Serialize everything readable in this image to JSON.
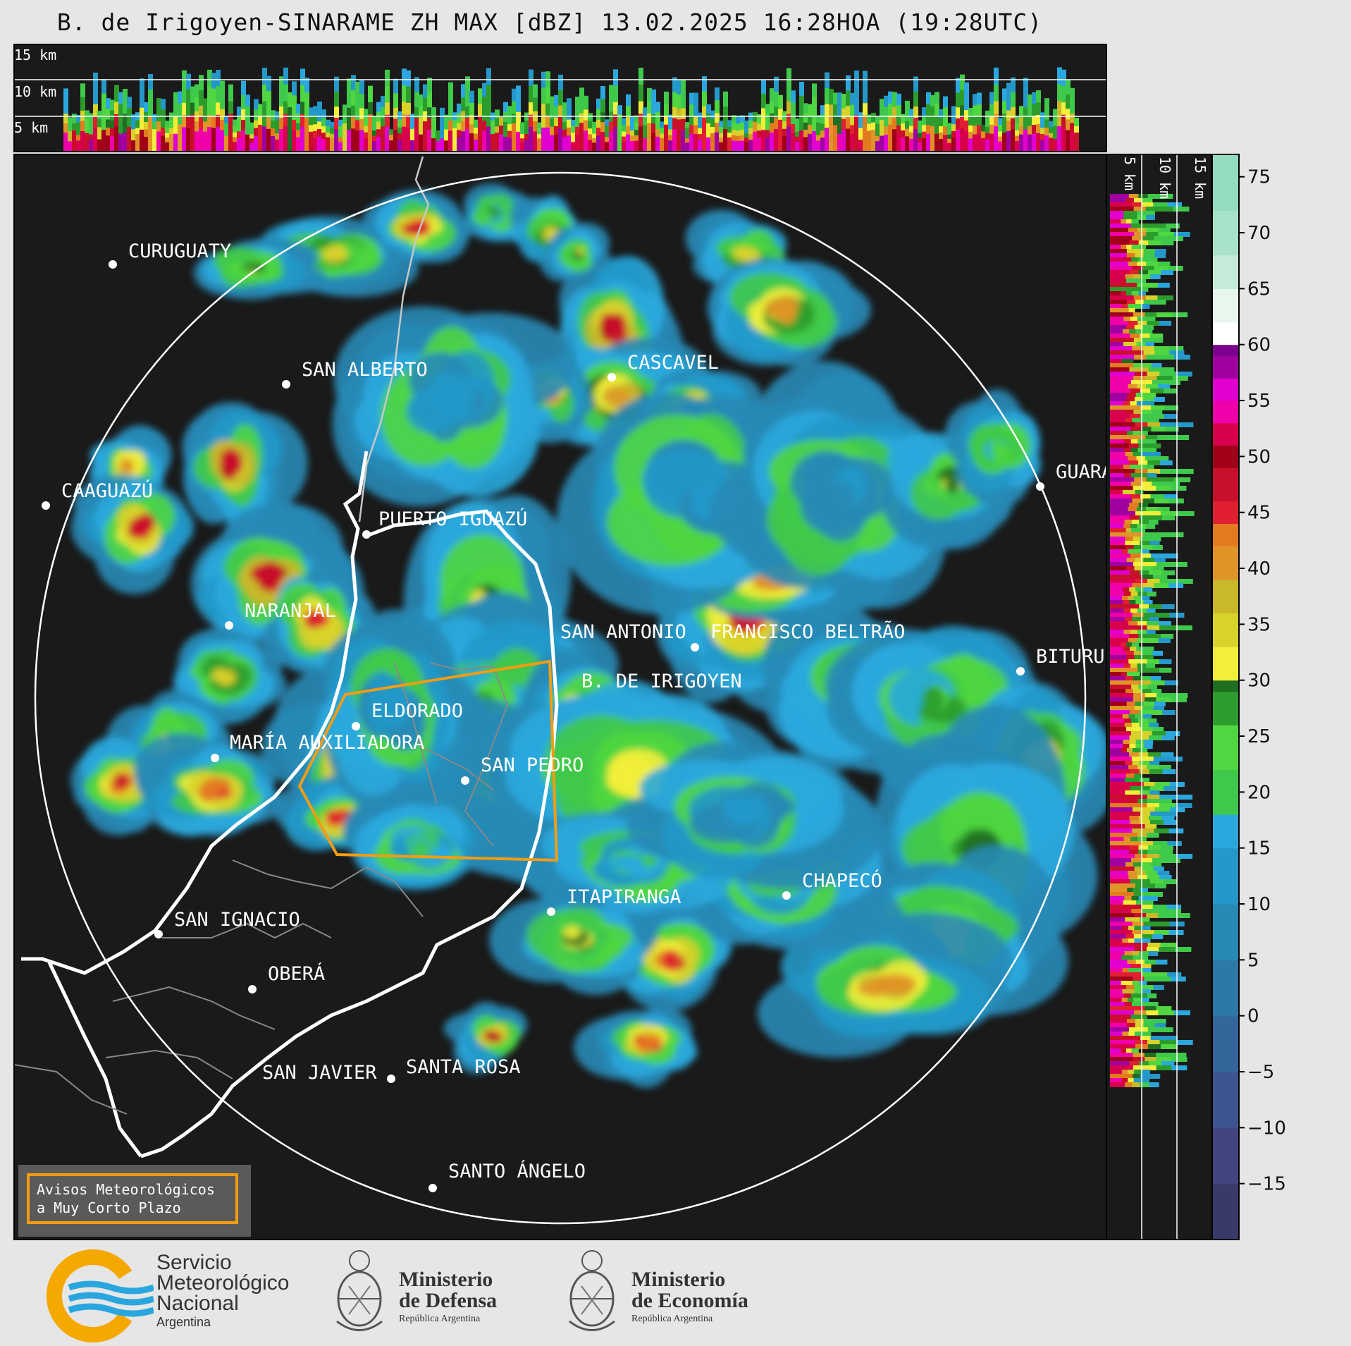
{
  "title": "B. de Irigoyen-SINARAME ZH MAX [dBZ] 13.02.2025 16:28HOA (19:28UTC)",
  "top_profile": {
    "height_labels": [
      "15 km",
      "10 km",
      "5 km"
    ]
  },
  "side_profile": {
    "height_labels": [
      "5 km",
      "10 km",
      "15 km"
    ]
  },
  "colorbar": {
    "ticks": [
      "75",
      "70",
      "65",
      "60",
      "55",
      "50",
      "45",
      "40",
      "35",
      "30",
      "25",
      "20",
      "15",
      "10",
      "5",
      "0",
      "−5",
      "−10",
      "−15"
    ],
    "tick_values": [
      75,
      70,
      65,
      60,
      55,
      50,
      45,
      40,
      35,
      30,
      25,
      20,
      15,
      10,
      5,
      0,
      -5,
      -10,
      -15
    ],
    "range": [
      -20,
      77
    ]
  },
  "cities": [
    {
      "name": "CURUGUATY"
    },
    {
      "name": "SAN ALBERTO"
    },
    {
      "name": "CASCAVEL"
    },
    {
      "name": "CAAGUAZÚ"
    },
    {
      "name": "GUARA"
    },
    {
      "name": "PUERTO IGUAZÚ"
    },
    {
      "name": "NARANJAL"
    },
    {
      "name": "SAN ANTONIO"
    },
    {
      "name": "FRANCISCO BELTRÃO"
    },
    {
      "name": "B. DE IRIGOYEN"
    },
    {
      "name": "BITURU"
    },
    {
      "name": "ELDORADO"
    },
    {
      "name": "MARÍA AUXILIADORA"
    },
    {
      "name": "SAN PEDRO"
    },
    {
      "name": "CHAPECÓ"
    },
    {
      "name": "ITAPIRANGA"
    },
    {
      "name": "SAN IGNACIO"
    },
    {
      "name": "OBERÁ"
    },
    {
      "name": "SAN JAVIER"
    },
    {
      "name": "SANTA ROSA"
    },
    {
      "name": "SANTO ÁNGELO"
    }
  ],
  "warning_box": {
    "line1": "Avisos Meteorológicos",
    "line2": "a Muy Corto Plazo"
  },
  "footer": {
    "smn": {
      "line1": "Servicio",
      "line2": "Meteorológico",
      "line3": "Nacional",
      "line4": "Argentina"
    },
    "defensa": {
      "line1": "Ministerio",
      "line2": "de Defensa",
      "line3": "República Argentina"
    },
    "economia": {
      "line1": "Ministerio",
      "line2": "de Economía",
      "line3": "República Argentina"
    }
  },
  "colors": {
    "background": "#e6e6e6",
    "plot_bg": "#1a1a1a",
    "warning_polygon": "#f39c12",
    "range_ring": "#ffffff"
  }
}
